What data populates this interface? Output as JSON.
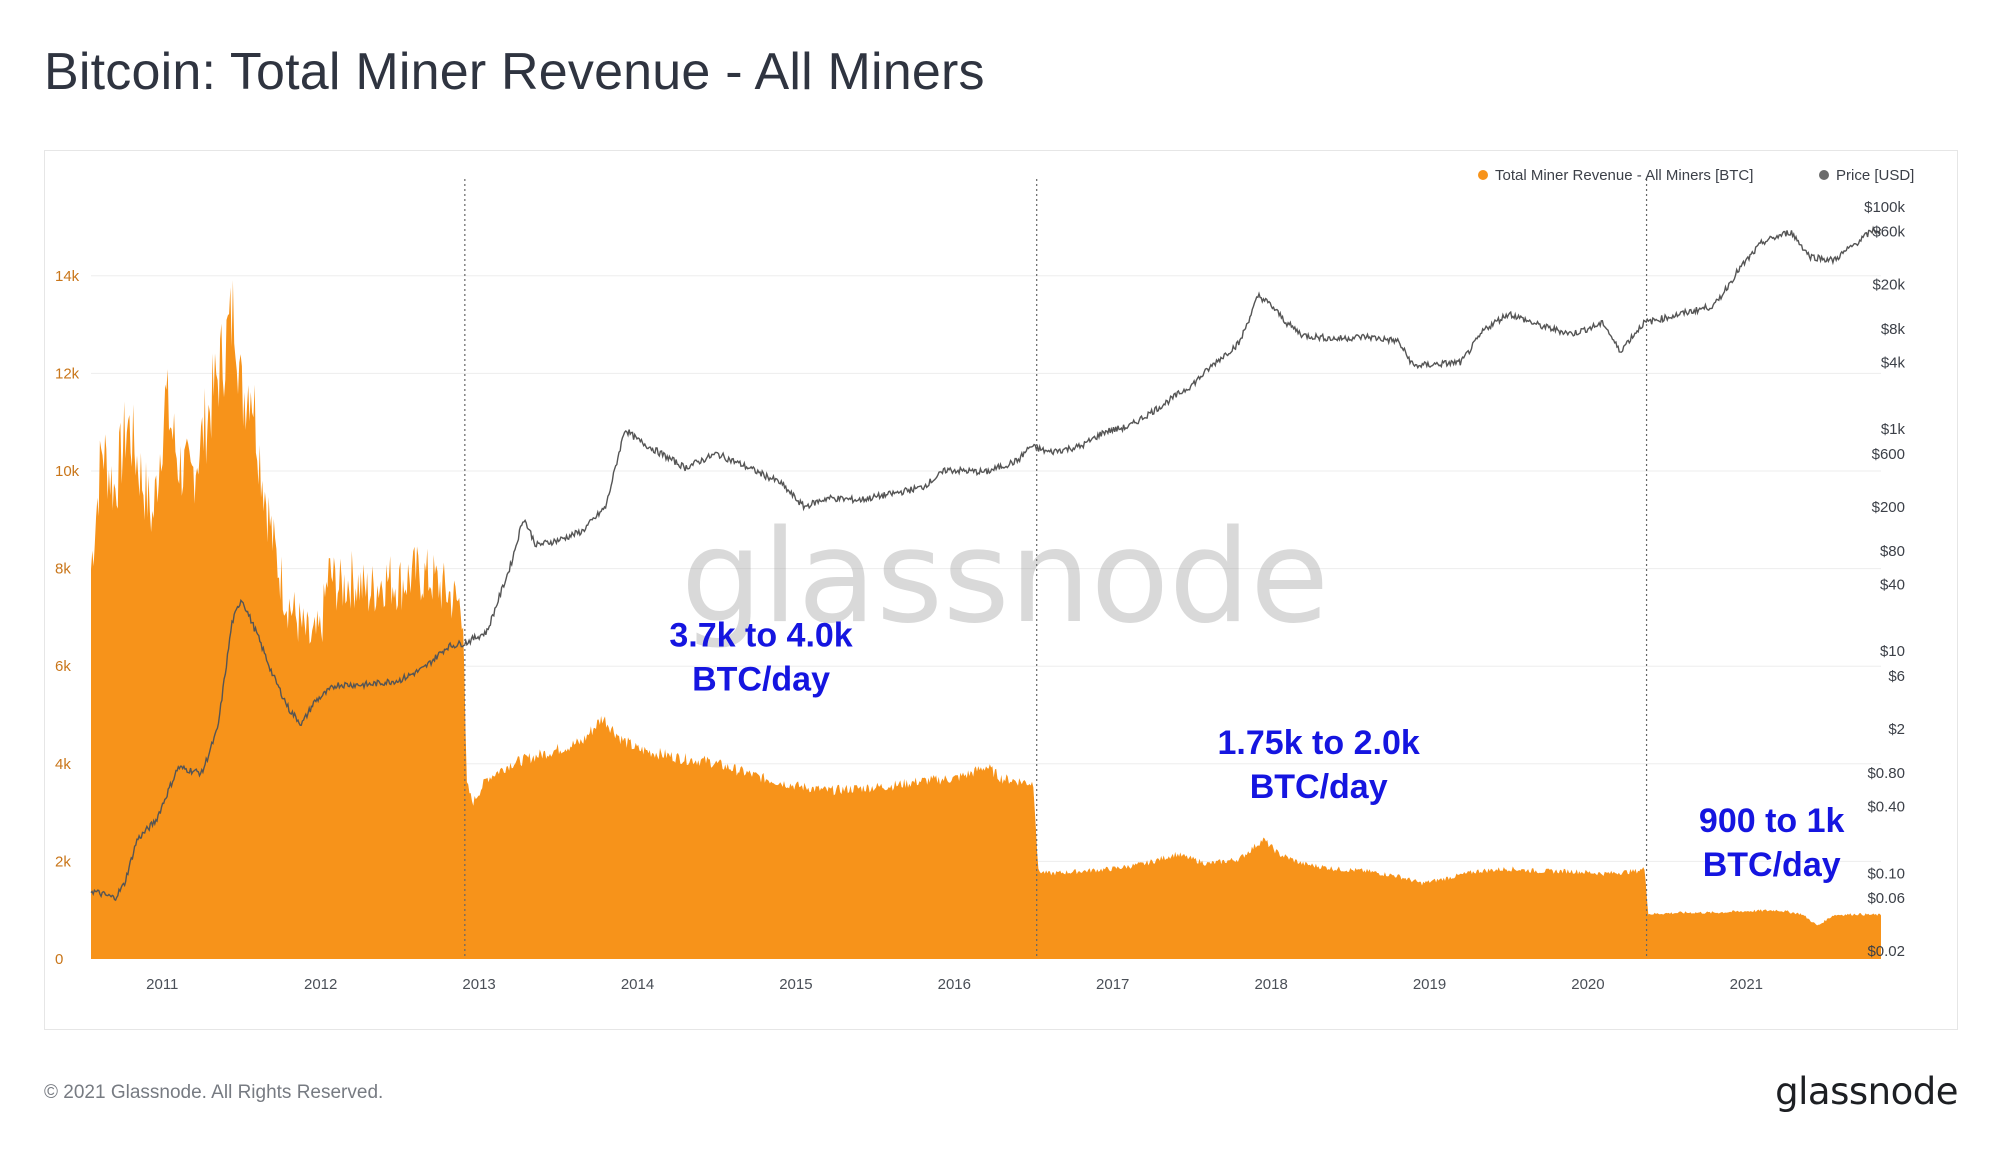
{
  "page": {
    "title": "Bitcoin: Total Miner Revenue - All Miners",
    "copyright": "© 2021 Glassnode. All Rights Reserved.",
    "logo_text": "glassnode"
  },
  "chart_data": {
    "type": "area",
    "watermark": "glassnode",
    "legend": {
      "placement": "top-right",
      "entries": [
        {
          "label": "Total Miner Revenue - All Miners [BTC]",
          "color": "#f7931a"
        },
        {
          "label": "Price [USD]",
          "color": "#6b6b6b"
        }
      ]
    },
    "x_axis": {
      "range": [
        2010.55,
        2021.85
      ],
      "ticks": [
        {
          "label": "2011",
          "value": 2011.0
        },
        {
          "label": "2012",
          "value": 2012.0
        },
        {
          "label": "2013",
          "value": 2013.0
        },
        {
          "label": "2014",
          "value": 2014.0
        },
        {
          "label": "2015",
          "value": 2015.0
        },
        {
          "label": "2016",
          "value": 2016.0
        },
        {
          "label": "2017",
          "value": 2017.0
        },
        {
          "label": "2018",
          "value": 2018.0
        },
        {
          "label": "2019",
          "value": 2019.0
        },
        {
          "label": "2020",
          "value": 2020.0
        },
        {
          "label": "2021",
          "value": 2021.0
        }
      ]
    },
    "y_left": {
      "range": [
        0,
        16000
      ],
      "color": "#c9761a",
      "ticks": [
        {
          "label": "0",
          "value": 0
        },
        {
          "label": "2k",
          "value": 2000
        },
        {
          "label": "4k",
          "value": 4000
        },
        {
          "label": "6k",
          "value": 6000
        },
        {
          "label": "8k",
          "value": 8000
        },
        {
          "label": "10k",
          "value": 10000
        },
        {
          "label": "12k",
          "value": 12000
        },
        {
          "label": "14k",
          "value": 14000
        }
      ]
    },
    "y_right": {
      "scale": "log",
      "range": [
        0.02,
        100000
      ],
      "ticks": [
        {
          "label": "$0.02",
          "value": 0.02
        },
        {
          "label": "$0.06",
          "value": 0.06
        },
        {
          "label": "$0.10",
          "value": 0.1
        },
        {
          "label": "$0.40",
          "value": 0.4
        },
        {
          "label": "$0.80",
          "value": 0.8
        },
        {
          "label": "$2",
          "value": 2
        },
        {
          "label": "$6",
          "value": 6
        },
        {
          "label": "$10",
          "value": 10
        },
        {
          "label": "$40",
          "value": 40
        },
        {
          "label": "$80",
          "value": 80
        },
        {
          "label": "$200",
          "value": 200
        },
        {
          "label": "$600",
          "value": 600
        },
        {
          "label": "$1k",
          "value": 1000
        },
        {
          "label": "$4k",
          "value": 4000
        },
        {
          "label": "$8k",
          "value": 8000
        },
        {
          "label": "$20k",
          "value": 20000
        },
        {
          "label": "$60k",
          "value": 60000
        },
        {
          "label": "$100k",
          "value": 100000
        }
      ]
    },
    "grid": true,
    "halving_markers": [
      2012.91,
      2016.52,
      2020.37
    ],
    "series": [
      {
        "name": "Total Miner Revenue - All Miners [BTC]",
        "axis": "left",
        "type": "area",
        "color": "#f7931a",
        "points": [
          [
            2010.55,
            8000
          ],
          [
            2010.62,
            10500
          ],
          [
            2010.7,
            9600
          ],
          [
            2010.78,
            11000
          ],
          [
            2010.86,
            10000
          ],
          [
            2010.94,
            9000
          ],
          [
            2011.02,
            11500
          ],
          [
            2011.1,
            10200
          ],
          [
            2011.18,
            9800
          ],
          [
            2011.26,
            10800
          ],
          [
            2011.34,
            11800
          ],
          [
            2011.4,
            12600
          ],
          [
            2011.46,
            13400
          ],
          [
            2011.5,
            11500
          ],
          [
            2011.56,
            11900
          ],
          [
            2011.62,
            10200
          ],
          [
            2011.7,
            8500
          ],
          [
            2011.78,
            7400
          ],
          [
            2011.86,
            6900
          ],
          [
            2011.94,
            6500
          ],
          [
            2012.0,
            6700
          ],
          [
            2012.05,
            7900
          ],
          [
            2012.12,
            7600
          ],
          [
            2012.2,
            7800
          ],
          [
            2012.3,
            7500
          ],
          [
            2012.4,
            7800
          ],
          [
            2012.5,
            7700
          ],
          [
            2012.6,
            7900
          ],
          [
            2012.7,
            7800
          ],
          [
            2012.8,
            7500
          ],
          [
            2012.9,
            7200
          ],
          [
            2012.92,
            3600
          ],
          [
            2012.96,
            3200
          ],
          [
            2013.05,
            3700
          ],
          [
            2013.2,
            4000
          ],
          [
            2013.35,
            4150
          ],
          [
            2013.5,
            4300
          ],
          [
            2013.65,
            4450
          ],
          [
            2013.78,
            4950
          ],
          [
            2013.9,
            4500
          ],
          [
            2014.0,
            4300
          ],
          [
            2014.15,
            4200
          ],
          [
            2014.3,
            4100
          ],
          [
            2014.45,
            4050
          ],
          [
            2014.6,
            3900
          ],
          [
            2014.8,
            3700
          ],
          [
            2015.0,
            3550
          ],
          [
            2015.2,
            3450
          ],
          [
            2015.4,
            3500
          ],
          [
            2015.6,
            3550
          ],
          [
            2015.8,
            3650
          ],
          [
            2016.0,
            3700
          ],
          [
            2016.1,
            3800
          ],
          [
            2016.2,
            3950
          ],
          [
            2016.3,
            3700
          ],
          [
            2016.4,
            3650
          ],
          [
            2016.5,
            3600
          ],
          [
            2016.53,
            1800
          ],
          [
            2016.6,
            1750
          ],
          [
            2016.8,
            1800
          ],
          [
            2017.0,
            1850
          ],
          [
            2017.2,
            1950
          ],
          [
            2017.4,
            2150
          ],
          [
            2017.6,
            1950
          ],
          [
            2017.8,
            2050
          ],
          [
            2017.95,
            2450
          ],
          [
            2018.05,
            2150
          ],
          [
            2018.2,
            1950
          ],
          [
            2018.4,
            1850
          ],
          [
            2018.6,
            1800
          ],
          [
            2018.8,
            1700
          ],
          [
            2018.95,
            1550
          ],
          [
            2019.1,
            1650
          ],
          [
            2019.3,
            1800
          ],
          [
            2019.5,
            1850
          ],
          [
            2019.7,
            1800
          ],
          [
            2019.9,
            1800
          ],
          [
            2020.1,
            1750
          ],
          [
            2020.3,
            1800
          ],
          [
            2020.36,
            1850
          ],
          [
            2020.38,
            920
          ],
          [
            2020.6,
            950
          ],
          [
            2020.8,
            950
          ],
          [
            2021.0,
            980
          ],
          [
            2021.2,
            1000
          ],
          [
            2021.35,
            920
          ],
          [
            2021.45,
            680
          ],
          [
            2021.55,
            900
          ],
          [
            2021.7,
            920
          ],
          [
            2021.85,
            900
          ]
        ]
      },
      {
        "name": "Price [USD]",
        "axis": "right",
        "type": "line",
        "color": "#555555",
        "points": [
          [
            2010.55,
            0.07
          ],
          [
            2010.7,
            0.06
          ],
          [
            2010.76,
            0.08
          ],
          [
            2010.84,
            0.2
          ],
          [
            2010.96,
            0.3
          ],
          [
            2011.1,
            0.9
          ],
          [
            2011.25,
            0.8
          ],
          [
            2011.35,
            2
          ],
          [
            2011.44,
            18
          ],
          [
            2011.5,
            30
          ],
          [
            2011.6,
            14
          ],
          [
            2011.7,
            6
          ],
          [
            2011.8,
            3
          ],
          [
            2011.88,
            2.2
          ],
          [
            2011.96,
            3.5
          ],
          [
            2012.1,
            5
          ],
          [
            2012.3,
            5
          ],
          [
            2012.5,
            5.5
          ],
          [
            2012.65,
            7
          ],
          [
            2012.8,
            11
          ],
          [
            2012.92,
            12
          ],
          [
            2013.05,
            15
          ],
          [
            2013.2,
            60
          ],
          [
            2013.28,
            160
          ],
          [
            2013.36,
            90
          ],
          [
            2013.5,
            100
          ],
          [
            2013.65,
            120
          ],
          [
            2013.8,
            200
          ],
          [
            2013.92,
            1000
          ],
          [
            2014.0,
            800
          ],
          [
            2014.15,
            600
          ],
          [
            2014.3,
            450
          ],
          [
            2014.5,
            600
          ],
          [
            2014.7,
            450
          ],
          [
            2014.9,
            330
          ],
          [
            2015.05,
            200
          ],
          [
            2015.2,
            240
          ],
          [
            2015.4,
            230
          ],
          [
            2015.6,
            260
          ],
          [
            2015.8,
            300
          ],
          [
            2015.95,
            430
          ],
          [
            2016.2,
            410
          ],
          [
            2016.4,
            520
          ],
          [
            2016.48,
            700
          ],
          [
            2016.6,
            620
          ],
          [
            2016.8,
            700
          ],
          [
            2016.95,
            950
          ],
          [
            2017.1,
            1050
          ],
          [
            2017.3,
            1600
          ],
          [
            2017.5,
            2500
          ],
          [
            2017.65,
            4000
          ],
          [
            2017.8,
            6000
          ],
          [
            2017.92,
            16000
          ],
          [
            2018.0,
            13000
          ],
          [
            2018.1,
            9000
          ],
          [
            2018.2,
            7000
          ],
          [
            2018.4,
            6500
          ],
          [
            2018.6,
            6800
          ],
          [
            2018.8,
            6200
          ],
          [
            2018.9,
            3700
          ],
          [
            2019.0,
            3800
          ],
          [
            2019.2,
            4000
          ],
          [
            2019.35,
            8000
          ],
          [
            2019.5,
            11000
          ],
          [
            2019.7,
            8500
          ],
          [
            2019.9,
            7200
          ],
          [
            2020.1,
            9000
          ],
          [
            2020.2,
            5000
          ],
          [
            2020.35,
            9000
          ],
          [
            2020.6,
            11000
          ],
          [
            2020.8,
            13000
          ],
          [
            2020.95,
            27000
          ],
          [
            2021.1,
            48000
          ],
          [
            2021.28,
            60000
          ],
          [
            2021.4,
            36000
          ],
          [
            2021.55,
            33000
          ],
          [
            2021.7,
            48000
          ],
          [
            2021.8,
            62000
          ],
          [
            2021.85,
            60000
          ]
        ]
      }
    ],
    "annotations": [
      {
        "lines": [
          "3.7k to 4.0k",
          "BTC/day"
        ],
        "x": 2014.78,
        "y": 6400,
        "color": "#1515e0"
      },
      {
        "lines": [
          "1.75k to 2.0k",
          "BTC/day"
        ],
        "x": 2018.3,
        "y": 4200,
        "color": "#1515e0"
      },
      {
        "lines": [
          "900 to 1k",
          "BTC/day"
        ],
        "x": 2021.16,
        "y": 2600,
        "color": "#1515e0"
      }
    ]
  }
}
